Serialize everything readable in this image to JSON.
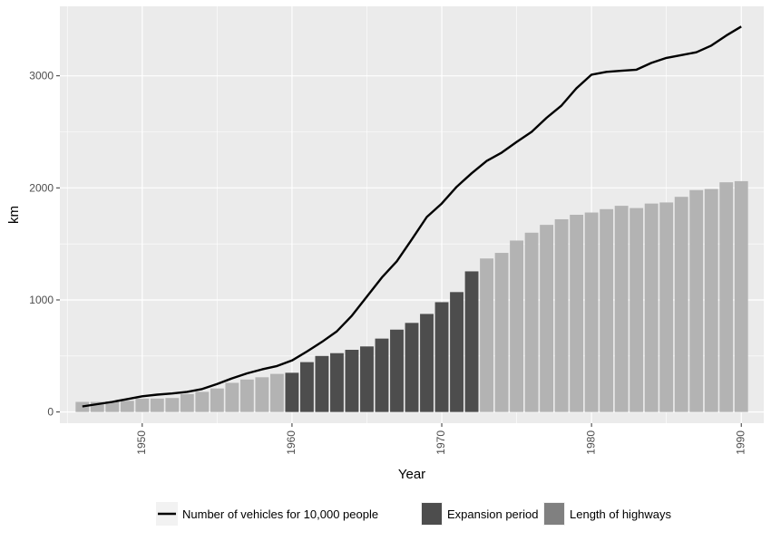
{
  "chart_data": {
    "type": "bar",
    "title": "",
    "xlabel": "Year",
    "ylabel": "km",
    "xlim": [
      1944.5,
      1991.5
    ],
    "ylim": [
      -100,
      3620
    ],
    "x_ticks": [
      1950,
      1960,
      1970,
      1980,
      1990
    ],
    "y_ticks": [
      0,
      1000,
      2000,
      3000
    ],
    "grid": true,
    "legend_position": "bottom",
    "colors": {
      "panel": "#ebebeb",
      "grid": "#ffffff",
      "highway_bar": "#b3b3b3",
      "expansion_bar": "#4d4d4d",
      "line": "#000000",
      "legend_key_bg": "#f2f2f2",
      "legend_highway_key": "#808080"
    },
    "x": [
      1946,
      1947,
      1948,
      1949,
      1950,
      1951,
      1952,
      1953,
      1954,
      1955,
      1956,
      1957,
      1958,
      1959,
      1960,
      1961,
      1962,
      1963,
      1964,
      1965,
      1966,
      1967,
      1968,
      1969,
      1970,
      1971,
      1972,
      1973,
      1974,
      1975,
      1976,
      1977,
      1978,
      1979,
      1980,
      1981,
      1982,
      1983,
      1984,
      1985,
      1986,
      1987,
      1988,
      1989,
      1990
    ],
    "expansion_period": [
      1960,
      1972
    ],
    "series": [
      {
        "name": "Length of highways",
        "kind": "bar",
        "values": [
          90,
          90,
          95,
          100,
          120,
          120,
          125,
          160,
          180,
          210,
          260,
          290,
          310,
          340,
          350,
          445,
          500,
          525,
          555,
          585,
          655,
          735,
          795,
          875,
          980,
          1070,
          1255,
          1370,
          1420,
          1530,
          1600,
          1670,
          1720,
          1760,
          1780,
          1810,
          1840,
          1820,
          1860,
          1870,
          1920,
          1980,
          1990,
          2050,
          2060
        ]
      },
      {
        "name": "Number of vehicles for 10,000 people",
        "kind": "line",
        "values": [
          50,
          70,
          90,
          115,
          140,
          155,
          165,
          180,
          205,
          250,
          300,
          345,
          380,
          410,
          460,
          540,
          625,
          720,
          860,
          1030,
          1200,
          1345,
          1540,
          1740,
          1860,
          2010,
          2130,
          2240,
          2315,
          2410,
          2500,
          2625,
          2735,
          2890,
          3010,
          3035,
          3045,
          3055,
          3115,
          3160,
          3185,
          3210,
          3270,
          3360,
          3440
        ]
      }
    ],
    "legend": [
      {
        "key": "line",
        "label": "Number of vehicles for 10,000 people"
      },
      {
        "key": "expansion",
        "label": "Expansion period"
      },
      {
        "key": "highway",
        "label": "Length of highways"
      }
    ]
  }
}
